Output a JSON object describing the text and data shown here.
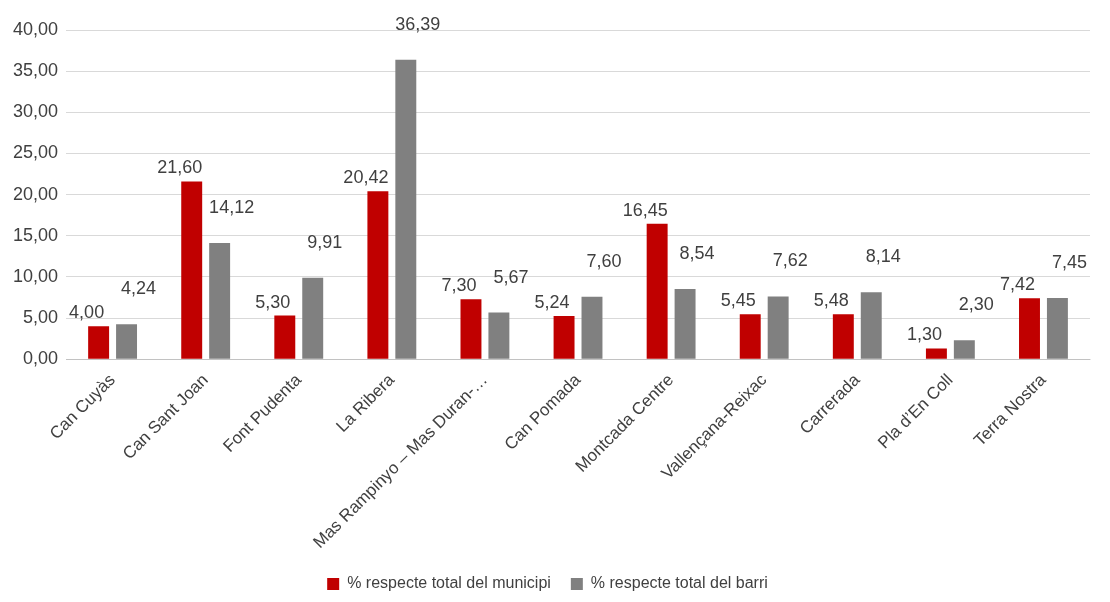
{
  "chart_data": {
    "type": "bar",
    "categories": [
      "Can Cuyàs",
      "Can Sant Joan",
      "Font Pudenta",
      "La Ribera",
      "Mas Rampinyo – Mas Duran-…",
      "Can Pomada",
      "Montcada Centre",
      "Vallençana-Reixac",
      "Carrerada",
      "Pla d’En Coll",
      "Terra Nostra"
    ],
    "series": [
      {
        "name": "% respecte total del municipi",
        "color": "#c00000",
        "values": [
          4.0,
          21.6,
          5.3,
          20.42,
          7.3,
          5.24,
          16.45,
          5.45,
          5.48,
          1.3,
          7.42
        ],
        "value_labels": [
          "4,00",
          "21,60",
          "5,30",
          "20,42",
          "7,30",
          "5,24",
          "16,45",
          "5,45",
          "5,48",
          "1,30",
          "7,42"
        ]
      },
      {
        "name": "% respecte total del barri",
        "color": "#808080",
        "values": [
          4.24,
          14.12,
          9.91,
          36.39,
          5.67,
          7.6,
          8.54,
          7.62,
          8.14,
          2.3,
          7.45
        ],
        "value_labels": [
          "4,24",
          "14,12",
          "9,91",
          "36,39",
          "5,67",
          "7,60",
          "8,54",
          "7,62",
          "8,14",
          "2,30",
          "7,45"
        ]
      }
    ],
    "ylim": [
      0,
      40
    ],
    "yticks": [
      {
        "value": 0,
        "label": "0,00"
      },
      {
        "value": 5,
        "label": "5,00"
      },
      {
        "value": 10,
        "label": "10,00"
      },
      {
        "value": 15,
        "label": "15,00"
      },
      {
        "value": 20,
        "label": "20,00"
      },
      {
        "value": 25,
        "label": "25,00"
      },
      {
        "value": 30,
        "label": "30,00"
      },
      {
        "value": 35,
        "label": "35,00"
      },
      {
        "value": 40,
        "label": "40,00"
      }
    ],
    "grid": "y",
    "legend": "bottom"
  }
}
